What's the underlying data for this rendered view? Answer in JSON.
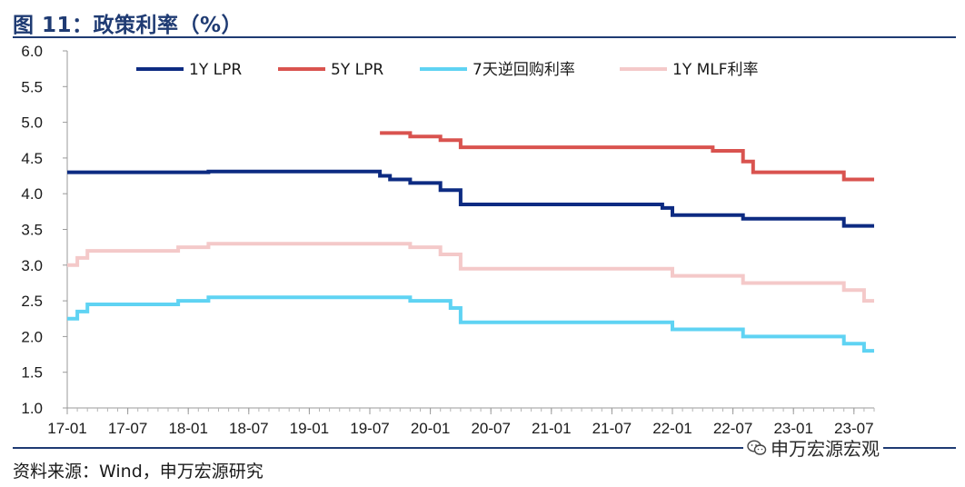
{
  "header": {
    "title": "图 11：政策利率（%）"
  },
  "footer": {
    "source": "资料来源：Wind，申万宏源研究"
  },
  "watermark": {
    "text": "申万宏源宏观",
    "icon": "wechat-icon"
  },
  "chart_data": {
    "type": "line",
    "title": "",
    "xlabel": "",
    "ylabel": "",
    "ylim": [
      1.0,
      6.0
    ],
    "yticks": [
      "1.0",
      "1.5",
      "2.0",
      "2.5",
      "3.0",
      "3.5",
      "4.0",
      "4.5",
      "5.0",
      "5.5",
      "6.0"
    ],
    "xlim": [
      "2017-01",
      "2023-09"
    ],
    "xticks": [
      "17-01",
      "17-07",
      "18-01",
      "18-07",
      "19-01",
      "19-07",
      "20-01",
      "20-07",
      "21-01",
      "21-07",
      "22-01",
      "22-07",
      "23-01",
      "23-07"
    ],
    "legend_position": "top",
    "grid": false,
    "series": [
      {
        "name": "1Y LPR",
        "color": "#0d2b82",
        "points": [
          [
            "2017-01",
            4.3
          ],
          [
            "2018-03",
            4.31
          ],
          [
            "2019-08",
            4.31
          ],
          [
            "2019-08",
            4.25
          ],
          [
            "2019-09",
            4.2
          ],
          [
            "2019-11",
            4.15
          ],
          [
            "2020-02",
            4.05
          ],
          [
            "2020-04",
            3.85
          ],
          [
            "2021-12",
            3.8
          ],
          [
            "2022-01",
            3.7
          ],
          [
            "2022-08",
            3.65
          ],
          [
            "2023-06",
            3.55
          ],
          [
            "2023-09",
            3.55
          ]
        ]
      },
      {
        "name": "5Y LPR",
        "color": "#d9534f",
        "points": [
          [
            "2019-08",
            4.85
          ],
          [
            "2019-11",
            4.8
          ],
          [
            "2020-02",
            4.75
          ],
          [
            "2020-04",
            4.65
          ],
          [
            "2022-05",
            4.6
          ],
          [
            "2022-08",
            4.45
          ],
          [
            "2022-09",
            4.3
          ],
          [
            "2023-06",
            4.2
          ],
          [
            "2023-09",
            4.2
          ]
        ]
      },
      {
        "name": "7天逆回购利率",
        "color": "#5fd3f3",
        "points": [
          [
            "2017-01",
            2.25
          ],
          [
            "2017-02",
            2.35
          ],
          [
            "2017-03",
            2.45
          ],
          [
            "2017-12",
            2.5
          ],
          [
            "2018-03",
            2.55
          ],
          [
            "2019-11",
            2.5
          ],
          [
            "2020-03",
            2.4
          ],
          [
            "2020-04",
            2.2
          ],
          [
            "2022-01",
            2.1
          ],
          [
            "2022-08",
            2.0
          ],
          [
            "2023-06",
            1.9
          ],
          [
            "2023-08",
            1.8
          ],
          [
            "2023-09",
            1.8
          ]
        ]
      },
      {
        "name": "1Y MLF利率",
        "color": "#f4c9c9",
        "points": [
          [
            "2017-01",
            3.0
          ],
          [
            "2017-02",
            3.1
          ],
          [
            "2017-03",
            3.2
          ],
          [
            "2017-12",
            3.25
          ],
          [
            "2018-03",
            3.3
          ],
          [
            "2019-11",
            3.25
          ],
          [
            "2020-02",
            3.15
          ],
          [
            "2020-04",
            2.95
          ],
          [
            "2022-01",
            2.85
          ],
          [
            "2022-08",
            2.75
          ],
          [
            "2023-06",
            2.65
          ],
          [
            "2023-08",
            2.5
          ],
          [
            "2023-09",
            2.5
          ]
        ]
      }
    ]
  }
}
